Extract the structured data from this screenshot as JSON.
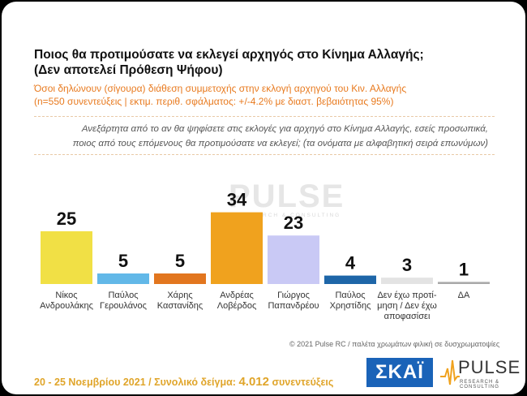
{
  "header": {
    "title_line1": "Ποιος θα προτιμούσατε να εκλεγεί αρχηγός στο Κίνημα Αλλαγής;",
    "title_line2": "(Δεν αποτελεί Πρόθεση Ψήφου)",
    "subtitle_line1": "Όσοι δηλώνουν (σίγουρα) διάθεση συμμετοχής στην εκλογή αρχηγού του Κιν. Αλλαγής",
    "subtitle_line2": "(n=550 συνεντεύξεις | εκτιμ. περιθ. σφάλματος: +/-4.2% με διαστ. βεβαιότητας 95%)",
    "question_line1": "Ανεξάρτητα από το αν θα ψηφίσετε στις εκλογές για αρχηγό στο Κίνημα Αλλαγής, εσείς προσωπικά,",
    "question_line2": "ποιος από τους επόμενους θα προτιμούσατε να εκλεγεί; (τα ονόματα με αλφαβητική σειρά επωνύμων)"
  },
  "watermark": {
    "text": "PULSE",
    "sub": "RESEARCH & CONSULTING"
  },
  "chart_data": {
    "type": "bar",
    "categories": [
      [
        "Νίκος",
        "Ανδρουλάκης"
      ],
      [
        "Παύλος",
        "Γερουλάνος"
      ],
      [
        "Χάρης",
        "Καστανίδης"
      ],
      [
        "Ανδρέας",
        "Λοβέρδος"
      ],
      [
        "Γιώργος",
        "Παπανδρέου"
      ],
      [
        "Παύλος",
        "Χρηστίδης"
      ],
      [
        "Δεν έχω προτί-",
        "μηση / Δεν έχω",
        "αποφασίσει"
      ],
      [
        "ΔΑ"
      ]
    ],
    "values": [
      25,
      5,
      5,
      34,
      23,
      4,
      3,
      1
    ],
    "colors": [
      "#f1e045",
      "#62b8e8",
      "#e2761f",
      "#f0a21e",
      "#c9c9f5",
      "#1e66a8",
      "#e3e3e3",
      "#a9a9a9"
    ],
    "ylim": [
      0,
      40
    ]
  },
  "credit": "© 2021 Pulse RC  /  παλέτα χρωμάτων φιλική σε δυσχρωματοψίες",
  "footer": {
    "dates": "20 - 25 Νοεμβρίου 2021  /  Συνολικό δείγμα: ",
    "sample": "4.012",
    "suffix": " συνεντεύξεις"
  },
  "logos": {
    "skai": "ΣΚΑΪ",
    "pulse": "PULSE",
    "pulse_sub": "RESEARCH & CONSULTING"
  }
}
